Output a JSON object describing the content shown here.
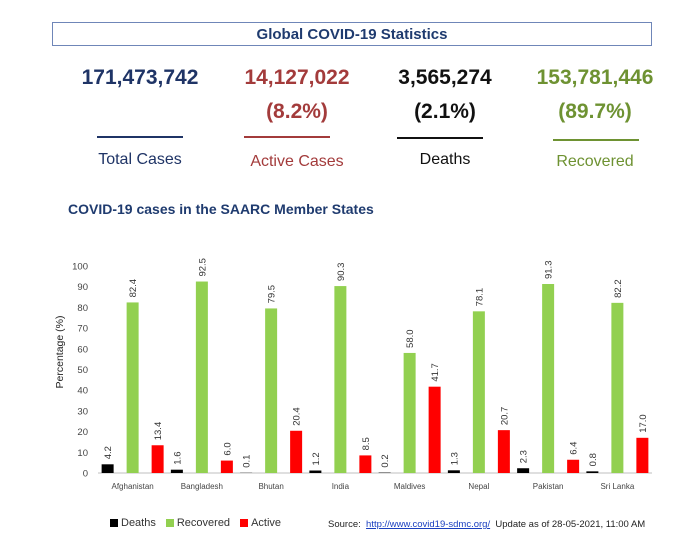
{
  "header": {
    "title": "Global COVID-19 Statistics"
  },
  "stats": {
    "total": {
      "value": "171,473,742",
      "label": "Total Cases",
      "color": "#1f3466"
    },
    "active": {
      "value": "14,127,022",
      "pct": "(8.2%)",
      "label": "Active Cases",
      "color": "#a33b3b"
    },
    "deaths": {
      "value": "3,565,274",
      "pct": "(2.1%)",
      "label": "Deaths",
      "color": "#111111"
    },
    "recovered": {
      "value": "153,781,446",
      "pct": "(89.7%)",
      "label": "Recovered",
      "color": "#6e9232"
    }
  },
  "chart_data": {
    "type": "bar",
    "title": "COVID-19 cases in the SAARC Member States",
    "ylabel": "Percentage (%)",
    "xlabel": "",
    "ylim": [
      0,
      100
    ],
    "yticks": [
      0,
      10,
      20,
      30,
      40,
      50,
      60,
      70,
      80,
      90,
      100
    ],
    "categories": [
      "Afghanistan",
      "Bangladesh",
      "Bhutan",
      "India",
      "Maldives",
      "Nepal",
      "Pakistan",
      "Sri Lanka"
    ],
    "series": [
      {
        "name": "Deaths",
        "color": "#000000",
        "values": [
          4.2,
          1.6,
          0.1,
          1.2,
          0.2,
          1.3,
          2.3,
          0.8
        ],
        "labels": [
          "4.2",
          "1.6",
          "0.1",
          "1.2",
          "0.2",
          "1.3",
          "2.3",
          "0.8"
        ]
      },
      {
        "name": "Recovered",
        "color": "#92d050",
        "values": [
          82.4,
          92.5,
          79.5,
          90.3,
          58.0,
          78.1,
          91.3,
          82.2
        ],
        "labels": [
          "82.4",
          "92.5",
          "79.5",
          "90.3",
          "58.0",
          "78.1",
          "91.3",
          "82.2"
        ]
      },
      {
        "name": "Active",
        "color": "#ff0000",
        "values": [
          13.4,
          6.0,
          20.4,
          8.5,
          41.7,
          20.7,
          6.4,
          17.0
        ],
        "labels": [
          "13.4",
          "6.0",
          "20.4",
          "8.5",
          "41.7",
          "20.7",
          "6.4",
          "17.0"
        ]
      }
    ],
    "legend_position": "bottom-left",
    "grid": false
  },
  "footer": {
    "source_prefix": "Source:",
    "source_link": "http://www.covid19-sdmc.org/",
    "update_text": "Update as of 28-05-2021, 11:00 AM"
  }
}
